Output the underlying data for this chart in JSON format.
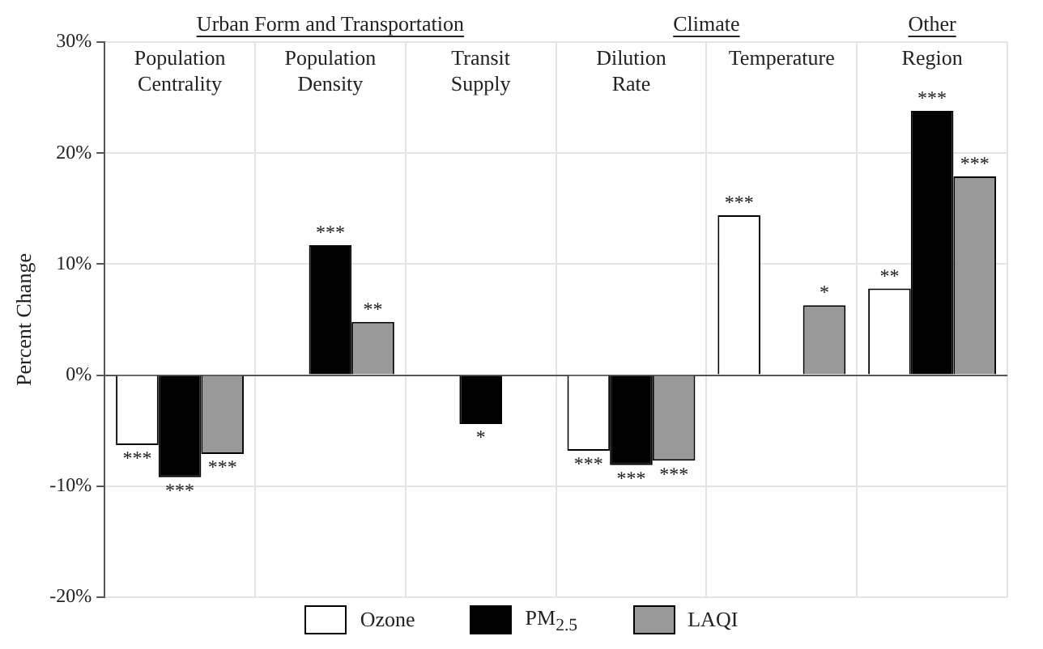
{
  "chart_data": {
    "type": "bar",
    "categories": [
      "Population Centrality",
      "Population Density",
      "Transit Supply",
      "Dilution Rate",
      "Temperature",
      "Region"
    ],
    "series": [
      {
        "name": "Ozone",
        "color": "#ffffff",
        "values": [
          -6.3,
          null,
          null,
          -6.8,
          14.4,
          7.8
        ],
        "value_labels": [
          "***",
          null,
          null,
          "***",
          "***",
          "**"
        ]
      },
      {
        "name": "PM$_{2.5}$",
        "color": "#000000",
        "values": [
          -9.2,
          11.7,
          -4.4,
          -8.1,
          null,
          23.8
        ],
        "value_labels": [
          "***",
          "***",
          "*",
          "***",
          null,
          "***"
        ]
      },
      {
        "name": "LAQI",
        "color": "#999999",
        "values": [
          -7.1,
          4.8,
          null,
          -7.7,
          6.3,
          17.9
        ],
        "value_labels": [
          "***",
          "**",
          null,
          "***",
          "*",
          "***"
        ]
      }
    ],
    "ylabel": "Percent Change",
    "ylim": [
      -20,
      30
    ],
    "yticks": [
      {
        "value": -20,
        "label": "-20%"
      },
      {
        "value": -10,
        "label": "-10%"
      },
      {
        "value": 0,
        "label": "0%"
      },
      {
        "value": 10,
        "label": "10%"
      },
      {
        "value": 20,
        "label": "20%"
      },
      {
        "value": 30,
        "label": "30%"
      }
    ],
    "annotations": [
      "Urban Form and Transportation",
      "Climate",
      "Other"
    ],
    "grid": true,
    "legend": "bottom"
  }
}
